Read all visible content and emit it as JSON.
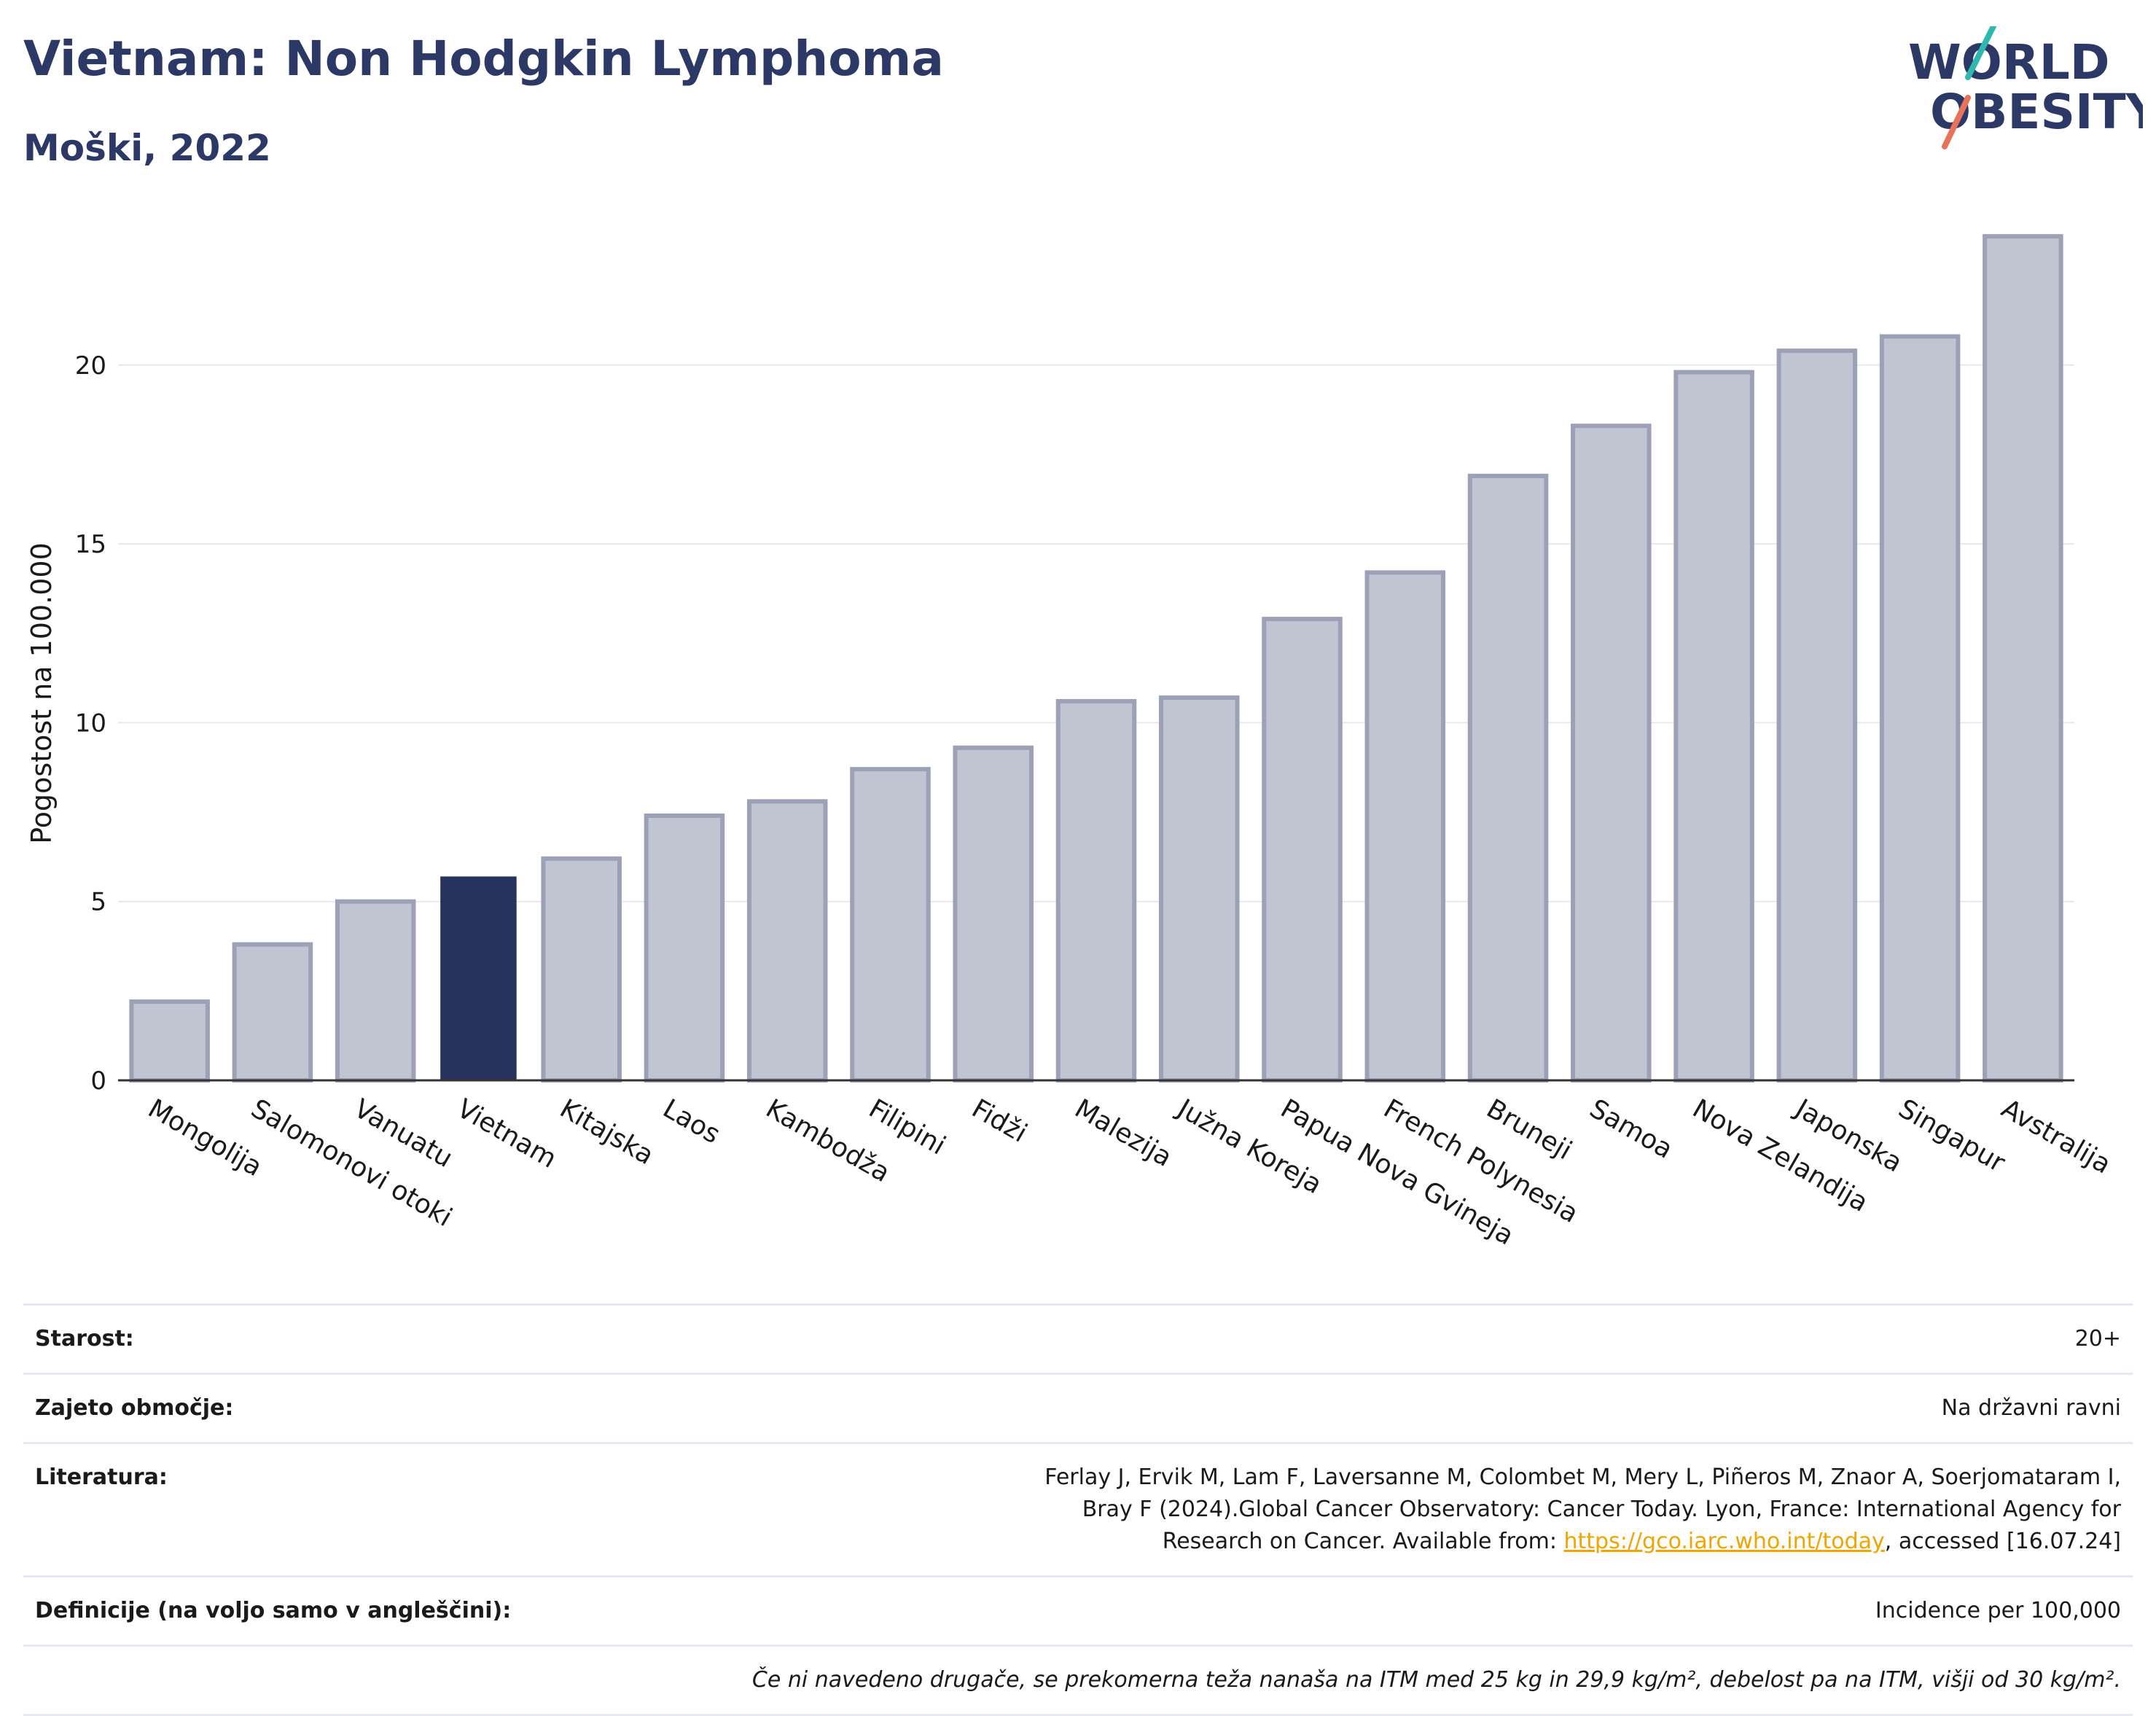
{
  "header": {
    "title": "Vietnam: Non Hodgkin Lymphoma",
    "subtitle": "Moški, 2022"
  },
  "logo": {
    "line1": "WORLD",
    "line2": "OBESITY"
  },
  "colors": {
    "title": "#2c3966",
    "bar_default_fill": "#c1c5d1",
    "bar_default_stroke": "#9ca1b8",
    "bar_highlight": "#28335d",
    "grid": "#e6e8ef",
    "axis": "#333333",
    "link": "#f0a500"
  },
  "chart_data": {
    "type": "bar",
    "categories": [
      "Mongolija",
      "Salomonovi otoki",
      "Vanuatu",
      "Vietnam",
      "Kitajska",
      "Laos",
      "Kambodža",
      "Filipini",
      "Fidži",
      "Malezija",
      "Južna Koreja",
      "Papua Nova Gvineja",
      "French Polynesia",
      "Bruneji",
      "Samoa",
      "Nova Zelandija",
      "Japonska",
      "Singapur",
      "Avstralija"
    ],
    "values": [
      2.2,
      3.8,
      5.0,
      5.7,
      6.2,
      7.4,
      7.8,
      8.7,
      9.3,
      10.6,
      10.7,
      12.9,
      14.2,
      16.9,
      18.3,
      19.8,
      20.4,
      20.8,
      23.6
    ],
    "highlight": "Vietnam",
    "ylabel": "Pogostost na 100.000",
    "xlabel": "",
    "ylim": [
      0,
      24.5
    ],
    "yticks": [
      0,
      5,
      10,
      15,
      20
    ],
    "grid": true
  },
  "info": {
    "rows": [
      {
        "label": "Starost:",
        "value": "20+"
      },
      {
        "label": "Zajeto območje:",
        "value": "Na državni ravni"
      },
      {
        "label": "Literatura:",
        "value_before": "Ferlay J, Ervik M, Lam F, Laversanne M, Colombet M, Mery L, Piñeros M, Znaor A, Soerjomataram I, Bray F (2024).Global Cancer Observatory: Cancer Today. Lyon, France: International Agency for Research on Cancer. Available from: ",
        "link": "https://gco.iarc.who.int/today",
        "value_after": ", accessed [16.07.24]"
      },
      {
        "label": "Definicije (na voljo samo v angleščini):",
        "value": "Incidence per 100,000"
      }
    ],
    "note": "Če ni navedeno drugače, se prekomerna teža nanaša na ITM med 25 kg in 29,9 kg/m², debelost pa na ITM, višji od 30 kg/m²."
  }
}
